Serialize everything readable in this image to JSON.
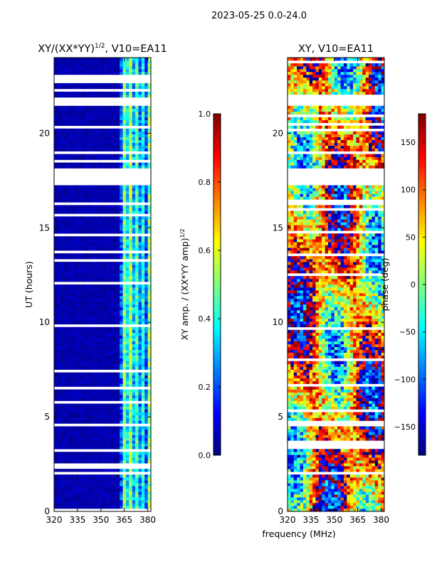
{
  "suptitle": "2023-05-25 0.0-24.0",
  "x_axis_label": "frequency (MHz)",
  "colormap": [
    "#00007f",
    "#0000ff",
    "#007fff",
    "#00ffff",
    "#7fff7f",
    "#ffff00",
    "#ff7f00",
    "#ff0000",
    "#7f0000"
  ],
  "chart_data": [
    {
      "id": "amp",
      "type": "heatmap",
      "title": "XY/(XX*YY)",
      "title_sup": "1/2",
      "title_suffix": ", V10=EA11",
      "ylabel": "UT (hours)",
      "xlim": [
        320,
        382
      ],
      "ylim": [
        0,
        24
      ],
      "xticks": [
        320,
        335,
        350,
        365,
        380
      ],
      "yticks": [
        0,
        5,
        10,
        15,
        20
      ],
      "colorbar": {
        "label": "XY amp. / (XX*YY amp)",
        "label_sup": "1/2",
        "range": [
          0.0,
          1.0
        ],
        "ticks": [
          {
            "v": 0.0,
            "t": "0.0"
          },
          {
            "v": 0.2,
            "t": "0.2"
          },
          {
            "v": 0.4,
            "t": "0.4"
          },
          {
            "v": 0.6,
            "t": "0.6"
          },
          {
            "v": 0.8,
            "t": "0.8"
          },
          {
            "v": 1.0,
            "t": "1.0"
          }
        ]
      },
      "data_gaps_hours": [
        [
          17.25,
          18.1
        ],
        [
          21.6,
          21.95
        ],
        [
          22.7,
          22.85
        ],
        [
          16.25,
          16.35
        ],
        [
          19.15,
          19.25
        ]
      ]
    },
    {
      "id": "phase",
      "type": "heatmap",
      "title": "XY, V10=EA11",
      "ylabel": "",
      "xlim": [
        320,
        382
      ],
      "ylim": [
        0,
        24
      ],
      "xticks": [
        320,
        335,
        350,
        365,
        380
      ],
      "yticks": [
        0,
        5,
        10,
        15,
        20
      ],
      "colorbar": {
        "label": "phase (deg)",
        "range": [
          -180,
          180
        ],
        "ticks": [
          {
            "v": -150,
            "t": "−150"
          },
          {
            "v": -100,
            "t": "−100"
          },
          {
            "v": -50,
            "t": "−50"
          },
          {
            "v": 0,
            "t": "0"
          },
          {
            "v": 50,
            "t": "50"
          },
          {
            "v": 100,
            "t": "100"
          },
          {
            "v": 150,
            "t": "150"
          }
        ]
      },
      "data_gaps_hours": [
        [
          17.25,
          18.1
        ],
        [
          21.6,
          21.95
        ],
        [
          16.25,
          16.35
        ],
        [
          19.15,
          19.25
        ]
      ]
    }
  ]
}
